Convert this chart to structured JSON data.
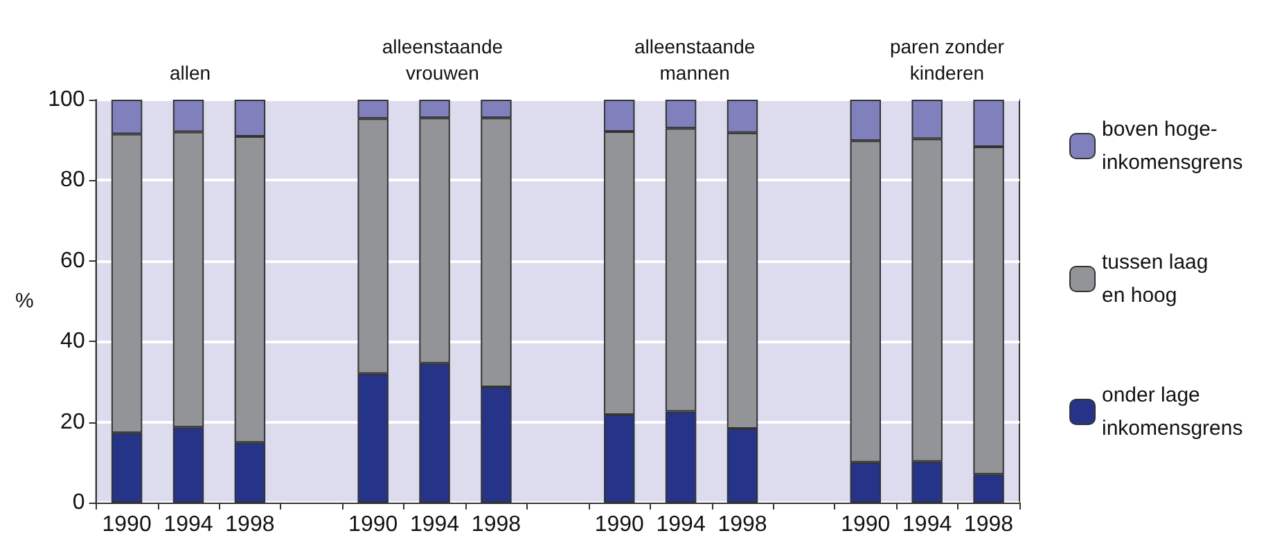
{
  "chart_data": {
    "type": "bar",
    "stacked": true,
    "ylabel": "%",
    "categories": [
      "1990",
      "1994",
      "1998",
      null,
      "1990",
      "1994",
      "1998",
      null,
      "1990",
      "1994",
      "1998",
      null,
      "1990",
      "1994",
      "1998"
    ],
    "series": [
      {
        "name": "onder lage inkomensgrens",
        "color": "#253489",
        "values": [
          17.3,
          18.7,
          14.9,
          null,
          32.0,
          34.6,
          28.7,
          null,
          21.8,
          22.6,
          18.4,
          null,
          10.0,
          10.2,
          7.0
        ]
      },
      {
        "name": "tussen laag en hoog",
        "color": "#929497",
        "values": [
          74.2,
          73.3,
          76.0,
          null,
          63.3,
          60.9,
          66.8,
          null,
          70.3,
          70.3,
          73.4,
          null,
          79.8,
          80.1,
          81.3
        ]
      },
      {
        "name": "boven hoge-inkomensgrens",
        "color": "#8080bc",
        "values": [
          8.5,
          8.0,
          9.1,
          null,
          4.7,
          4.5,
          4.5,
          null,
          7.9,
          7.1,
          8.2,
          null,
          10.2,
          9.7,
          11.7
        ]
      }
    ],
    "annotations": [
      "allen",
      "alleenstaande vrouwen",
      "alleenstaande mannen",
      "paren zonder kinderen"
    ],
    "ylim": [
      0,
      100
    ],
    "yticks": [
      0,
      20,
      40,
      60,
      80,
      100
    ],
    "grid": "y",
    "legend": "right"
  }
}
